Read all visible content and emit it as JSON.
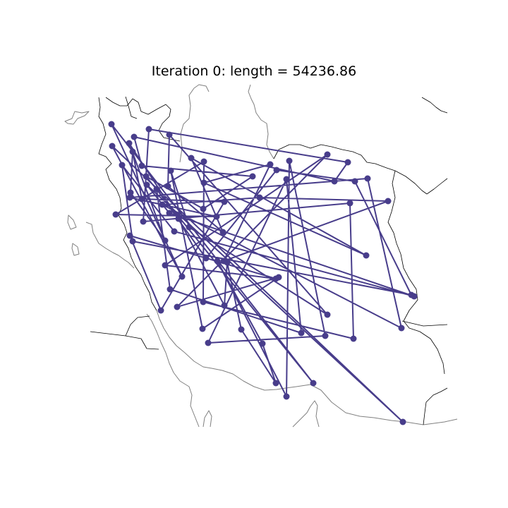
{
  "title": "Iteration 0: length = 54236.86",
  "colors": {
    "route": "#483d8b",
    "coast": "#808080",
    "border": "#000000",
    "background": "#ffffff"
  },
  "chart_data": {
    "type": "route",
    "iteration": 0,
    "length": 54236.86,
    "tour_order": [
      0,
      46,
      5,
      71,
      27,
      35,
      66,
      36,
      7,
      31,
      65,
      18,
      13,
      41,
      28,
      47,
      60,
      20,
      56,
      61,
      14,
      58,
      42,
      55,
      57,
      54,
      44,
      51,
      75,
      4,
      34,
      25,
      6,
      29,
      23,
      48,
      33,
      52,
      45,
      15,
      49,
      70,
      53,
      9,
      37,
      63,
      3,
      72,
      40,
      10,
      67,
      24,
      12,
      43,
      69,
      22,
      74,
      64,
      17,
      26,
      39,
      30,
      11,
      50,
      62,
      68,
      32,
      2,
      16,
      19,
      1,
      73,
      21,
      38,
      8,
      59
    ]
  }
}
